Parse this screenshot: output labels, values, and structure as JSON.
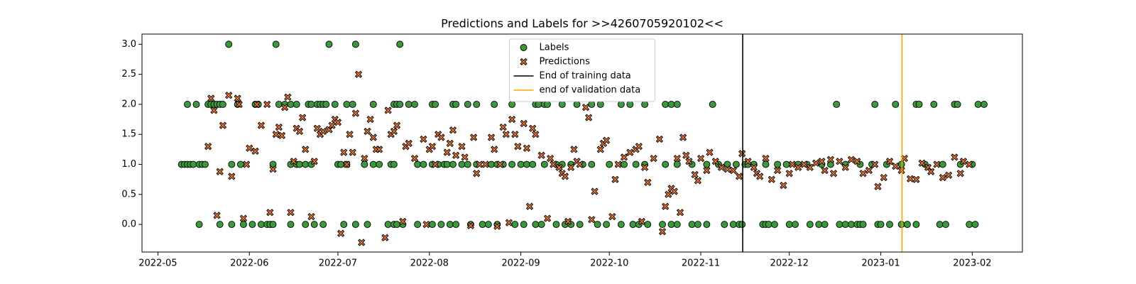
{
  "chart_data": {
    "type": "scatter",
    "title": "Predictions and Labels for >>4260705920102<<",
    "xlim": [
      -5.4,
      293
    ],
    "ylim": [
      -0.46,
      3.17
    ],
    "xticks": [
      {
        "value": 0,
        "label": "2022-05"
      },
      {
        "value": 31,
        "label": "2022-06"
      },
      {
        "value": 61,
        "label": "2022-07"
      },
      {
        "value": 92,
        "label": "2022-08"
      },
      {
        "value": 123,
        "label": "2022-09"
      },
      {
        "value": 153,
        "label": "2022-10"
      },
      {
        "value": 184,
        "label": "2022-11"
      },
      {
        "value": 214,
        "label": "2022-12"
      },
      {
        "value": 245,
        "label": "2023-01"
      },
      {
        "value": 276,
        "label": "2023-02"
      }
    ],
    "yticks": [
      {
        "value": 0,
        "label": "0.0"
      },
      {
        "value": 0.5,
        "label": "0.5"
      },
      {
        "value": 1,
        "label": "1.0"
      },
      {
        "value": 1.5,
        "label": "1.5"
      },
      {
        "value": 2,
        "label": "2.0"
      },
      {
        "value": 2.5,
        "label": "2.5"
      },
      {
        "value": 3,
        "label": "3.0"
      }
    ],
    "legend": "upper center",
    "series": [
      {
        "name": "Labels",
        "color": "#3a9a3a",
        "marker": "o",
        "x": [
          24,
          40,
          58,
          67,
          82,
          10,
          13,
          17,
          18,
          19,
          20,
          21,
          22,
          27,
          33,
          34,
          41,
          43,
          45,
          47,
          51,
          52,
          54,
          55,
          56,
          57,
          60,
          64,
          66,
          73,
          80,
          81,
          82,
          85,
          87,
          93,
          94,
          100,
          101,
          105,
          108,
          114,
          120,
          128,
          129,
          131,
          132,
          137,
          142,
          147,
          150,
          157,
          160,
          165,
          172,
          174,
          176,
          188,
          230,
          243,
          250,
          257,
          258,
          263,
          270,
          271,
          278,
          280,
          8,
          9,
          10,
          11,
          12,
          14,
          15,
          16,
          25,
          28,
          39,
          45,
          47,
          48,
          50,
          52,
          61,
          62,
          64,
          70,
          73,
          75,
          79,
          80,
          88,
          90,
          93,
          95,
          97,
          98,
          100,
          103,
          105,
          108,
          113,
          115,
          117,
          120,
          123,
          125,
          127,
          131,
          135,
          137,
          140,
          144,
          147,
          153,
          158,
          162,
          165,
          172,
          176,
          181,
          186,
          190,
          193,
          196,
          199,
          200,
          202,
          206,
          210,
          213,
          217,
          220,
          225,
          228,
          233,
          238,
          242,
          247,
          252,
          260,
          266,
          272,
          276,
          14,
          21,
          25,
          29,
          32,
          35,
          37,
          38,
          39,
          45,
          50,
          53,
          56,
          63,
          67,
          71,
          78,
          80,
          81,
          83,
          88,
          93,
          96,
          99,
          101,
          106,
          110,
          112,
          115,
          121,
          124,
          128,
          130,
          135,
          138,
          140,
          143,
          149,
          152,
          157,
          161,
          163,
          166,
          171,
          174,
          176,
          181,
          183,
          186,
          192,
          195,
          197,
          198,
          205,
          206,
          207,
          209,
          214,
          216,
          221,
          224,
          226,
          231,
          233,
          235,
          237,
          238,
          239,
          244,
          245,
          248,
          252,
          254,
          257,
          265,
          267,
          275,
          277
        ],
        "values": [
          3,
          3,
          3,
          3,
          3,
          2,
          2,
          2,
          2,
          2,
          2,
          2,
          2,
          2,
          2,
          2,
          2,
          2,
          2,
          2,
          2,
          2,
          2,
          2,
          2,
          2,
          2,
          2,
          2,
          2,
          2,
          2,
          2,
          2,
          2,
          2,
          2,
          2,
          2,
          2,
          2,
          2,
          2,
          2,
          2,
          2,
          2,
          2,
          2,
          2,
          2,
          2,
          2,
          2,
          2,
          2,
          2,
          2,
          2,
          2,
          2,
          2,
          2,
          2,
          2,
          2,
          2,
          2,
          1,
          1,
          1,
          1,
          1,
          1,
          1,
          1,
          1,
          1,
          1,
          1,
          1,
          1,
          1,
          1,
          1,
          1,
          1,
          1,
          1,
          1,
          1,
          1,
          1,
          1,
          1,
          1,
          1,
          1,
          1,
          1,
          1,
          1,
          1,
          1,
          1,
          1,
          1,
          1,
          1,
          1,
          1,
          1,
          1,
          1,
          1,
          1,
          1,
          1,
          1,
          1,
          1,
          1,
          1,
          1,
          1,
          1,
          1,
          1,
          1,
          1,
          1,
          1,
          1,
          1,
          1,
          1,
          1,
          1,
          1,
          1,
          1,
          1,
          1,
          1,
          1,
          0,
          0,
          0,
          0,
          0,
          0,
          0,
          0,
          0,
          0,
          0,
          0,
          0,
          0,
          0,
          0,
          0,
          0,
          0,
          0,
          0,
          0,
          0,
          0,
          0,
          0,
          0,
          0,
          0,
          0,
          0,
          0,
          0,
          0,
          0,
          0,
          0,
          0,
          0,
          0,
          0,
          0,
          0,
          0,
          0,
          0,
          0,
          0,
          0,
          0,
          0,
          0,
          0,
          0,
          0,
          0,
          0,
          0,
          0,
          0,
          0,
          0,
          0,
          0,
          0,
          0,
          0,
          0,
          0,
          0,
          0,
          0,
          0,
          0,
          0,
          0,
          0,
          0
        ]
      },
      {
        "name": "Predictions",
        "color": "#e8742c",
        "marker": "X",
        "x": [
          17,
          18,
          19,
          20,
          21,
          22,
          24,
          25,
          27,
          27.5,
          29,
          30,
          31,
          33,
          33.5,
          35,
          37,
          38,
          39,
          40,
          41,
          42,
          43,
          44,
          45,
          46,
          47,
          48,
          49,
          50,
          52,
          53,
          54,
          55,
          56,
          58,
          59,
          60,
          61,
          62,
          63,
          64,
          65,
          66,
          67,
          68,
          69,
          70,
          71,
          72,
          73,
          74,
          75,
          77,
          78,
          79,
          80,
          81,
          83,
          84,
          85,
          87,
          90,
          91,
          92,
          93,
          94,
          95,
          96,
          98,
          99,
          100,
          101,
          103,
          104,
          106,
          107,
          108,
          109,
          111,
          113,
          114,
          115,
          116,
          117,
          118,
          119,
          120,
          121,
          122,
          124,
          125,
          126,
          127,
          128,
          130,
          132,
          133,
          134,
          136,
          137,
          138,
          139,
          140,
          141,
          142,
          143,
          145,
          146,
          147,
          148,
          150,
          151,
          152,
          154,
          155,
          156,
          158,
          160,
          162,
          163,
          164,
          165,
          166,
          168,
          170,
          171,
          172,
          173,
          174,
          175,
          176,
          177,
          178,
          179,
          180,
          182,
          183,
          184,
          186,
          187,
          189,
          191,
          193,
          195,
          197,
          198,
          200,
          202,
          203,
          204,
          206,
          208,
          210,
          212,
          214,
          215,
          217,
          219,
          221,
          223,
          225,
          226,
          228,
          229,
          231,
          233,
          235,
          237,
          239,
          241,
          243,
          244,
          246,
          248,
          250,
          252,
          253,
          255,
          257,
          259,
          261,
          262,
          264,
          266,
          268,
          270,
          272,
          273,
          275
        ],
        "values": [
          1.3,
          2.1,
          1.9,
          0.15,
          0.88,
          1.65,
          2.15,
          0.8,
          2.1,
          2.0,
          0.1,
          1.0,
          1.27,
          1.22,
          2.0,
          1.65,
          2.0,
          0.2,
          0.92,
          1.5,
          1.62,
          1.48,
          1.95,
          2.12,
          0.2,
          1.05,
          1.6,
          1.55,
          1.78,
          1.25,
          0.13,
          1.05,
          1.6,
          1.5,
          1.55,
          1.58,
          1.65,
          1.75,
          1.7,
          -0.15,
          1.2,
          1.0,
          1.5,
          1.2,
          1.85,
          2.5,
          -0.3,
          1.1,
          1.55,
          1.75,
          1.45,
          1.25,
          1.25,
          -0.22,
          1.9,
          1.5,
          1.55,
          1.65,
          0.05,
          1.3,
          1.35,
          1.1,
          1.42,
          0.0,
          1.25,
          1.3,
          1.0,
          1.5,
          1.45,
          1.2,
          1.35,
          1.57,
          1.15,
          1.3,
          1.12,
          -0.02,
          1.45,
          0.85,
          1.0,
          1.0,
          1.45,
          1.25,
          -0.03,
          1.0,
          1.62,
          1.5,
          0.03,
          1.75,
          1.5,
          1.3,
          1.68,
          1.27,
          0.3,
          1.6,
          1.5,
          1.15,
          0.1,
          1.1,
          1.0,
          0.95,
          0.85,
          0.8,
          0.05,
          0.95,
          1.25,
          1.05,
          1.0,
          1.95,
          1.78,
          0.08,
          0.55,
          1.25,
          1.35,
          1.4,
          0.13,
          0.75,
          1.0,
          1.12,
          1.2,
          1.25,
          1.3,
          0.05,
          0.95,
          0.7,
          1.1,
          1.42,
          -0.12,
          0.3,
          0.5,
          0.6,
          0.55,
          1.1,
          0.2,
          1.45,
          1.15,
          1.05,
          0.83,
          0.73,
          1.1,
          0.9,
          1.2,
          1.05,
          0.95,
          0.92,
          0.9,
          0.8,
          1.18,
          1.05,
          0.95,
          0.85,
          0.8,
          1.1,
          0.75,
          0.9,
          0.65,
          0.85,
          1.0,
          0.95,
          1.0,
          0.95,
          1.02,
          1.05,
          0.9,
          1.08,
          0.85,
          1.05,
          0.95,
          1.08,
          1.05,
          0.85,
          0.9,
          1.0,
          0.63,
          0.78,
          1.05,
          0.97,
          0.9,
          1.1,
          0.76,
          0.75,
          1.02,
          0.95,
          0.88,
          1.0,
          0.78,
          0.82,
          1.12,
          0.85,
          1.05,
          1.0
        ]
      }
    ],
    "vlines": [
      {
        "name": "End of training data",
        "x": 198.2,
        "color": "#000000"
      },
      {
        "name": "end of validation data",
        "x": 252.2,
        "color": "#ffa500"
      }
    ]
  }
}
